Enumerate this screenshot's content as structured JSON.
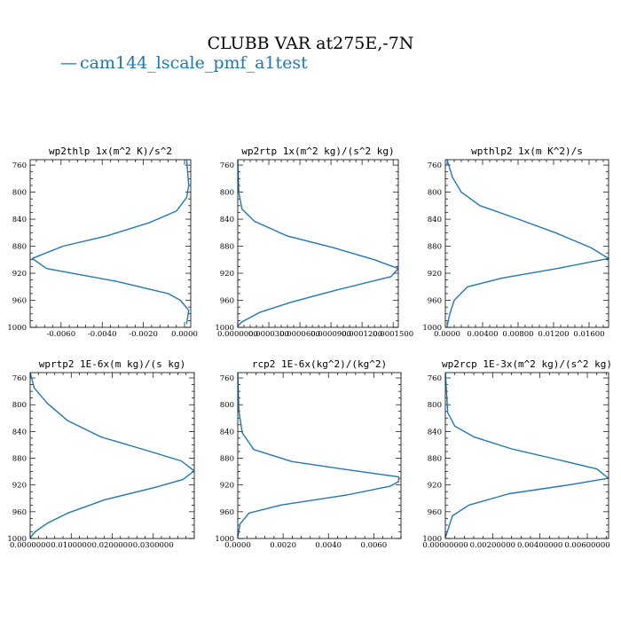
{
  "figure": {
    "title": "CLUBB VAR at275E,-7N",
    "legend": {
      "label": "cam144_lscale_pmf_a1test",
      "color": "#1f77b4",
      "marker": "—"
    }
  },
  "chart_data": [
    {
      "type": "line",
      "title": "wp2thlp  1x(m^2 K)/s^2",
      "y_ticks": [
        760,
        800,
        840,
        880,
        920,
        960,
        1000
      ],
      "x_ticks": [
        -0.006,
        -0.004,
        -0.002,
        0.0
      ],
      "x_tick_labels": [
        "-0.0060",
        "-0.0040",
        "-0.0020",
        "0.0000"
      ],
      "xlim": [
        -0.0075,
        0.0003
      ],
      "ylim": [
        1000,
        752
      ],
      "series": [
        {
          "x": [
            0.0001,
            0.0002,
            0.0001,
            -0.0004,
            -0.0017,
            -0.0038,
            -0.0059,
            -0.0074,
            -0.0067,
            -0.0033,
            -0.0008,
            -0.0002,
            0.0002,
            0.0001
          ],
          "y": [
            752,
            790,
            808,
            828,
            845,
            865,
            880,
            898,
            913,
            932,
            950,
            960,
            975,
            995
          ]
        }
      ]
    },
    {
      "type": "line",
      "title": "wp2rtp  1x(m^2 kg)/(s^2 kg)",
      "y_ticks": [
        760,
        800,
        840,
        880,
        920,
        960,
        1000
      ],
      "x_ticks": [
        0.0,
        3e-05,
        6e-05,
        9e-05,
        0.00012,
        0.00015
      ],
      "x_tick_labels": [
        "0.0000000",
        "0.0000300",
        "0.0000600",
        "0.0000900",
        "0.0001200",
        "0.0001500"
      ],
      "xlim": [
        0.0,
        0.000155
      ],
      "ylim": [
        1000,
        752
      ],
      "series": [
        {
          "x": [
            0.0,
            1e-06,
            4e-06,
            1.6e-05,
            4.8e-05,
            9.2e-05,
            0.000132,
            0.000155,
            0.000148,
            9.5e-05,
            5.1e-05,
            2.1e-05,
            4e-06,
            0.0
          ],
          "y": [
            752,
            800,
            825,
            843,
            865,
            882,
            900,
            913,
            925,
            945,
            963,
            978,
            992,
            998
          ]
        }
      ]
    },
    {
      "type": "line",
      "title": "wpthlp2  1x(m K^2)/s",
      "y_ticks": [
        760,
        800,
        840,
        880,
        920,
        960,
        1000
      ],
      "x_ticks": [
        0.0,
        0.004,
        0.008,
        0.012,
        0.016
      ],
      "x_tick_labels": [
        "0.0000",
        "0.00400",
        "0.00800",
        "0.01200",
        "0.01600"
      ],
      "xlim": [
        -0.0002,
        0.0182
      ],
      "ylim": [
        1000,
        752
      ],
      "series": [
        {
          "x": [
            0.0,
            0.0006,
            0.0016,
            0.0037,
            0.0076,
            0.0122,
            0.0162,
            0.0182,
            0.0124,
            0.0062,
            0.0023,
            0.0008,
            0.0003,
            0.0
          ],
          "y": [
            752,
            778,
            800,
            820,
            838,
            860,
            882,
            898,
            913,
            927,
            940,
            960,
            980,
            998
          ]
        }
      ]
    },
    {
      "type": "line",
      "title": "wprtp2  1E-6x(m kg)/(s kg)",
      "y_ticks": [
        760,
        800,
        840,
        880,
        920,
        960,
        1000
      ],
      "x_ticks": [
        0.0,
        0.01,
        0.02,
        0.03
      ],
      "x_tick_labels": [
        "0.0000000",
        "0.0100000",
        "0.0200000",
        "0.0300000"
      ],
      "xlim": [
        0.0,
        0.04
      ],
      "ylim": [
        1000,
        752
      ],
      "series": [
        {
          "x": [
            0.0,
            0.001,
            0.0042,
            0.0092,
            0.0172,
            0.0282,
            0.0368,
            0.04,
            0.0372,
            0.0302,
            0.0182,
            0.0092,
            0.0042,
            0.0012,
            0.0
          ],
          "y": [
            752,
            775,
            798,
            824,
            848,
            868,
            884,
            899,
            912,
            924,
            942,
            962,
            977,
            990,
            999
          ]
        }
      ]
    },
    {
      "type": "line",
      "title": "rcp2  1E-6x(kg^2)/(kg^2)",
      "y_ticks": [
        760,
        800,
        840,
        880,
        920,
        960,
        1000
      ],
      "x_ticks": [
        0.0,
        0.002,
        0.004,
        0.006
      ],
      "x_tick_labels": [
        "0.0000",
        "0.0020",
        "0.0040",
        "0.0060"
      ],
      "xlim": [
        0.0,
        0.0072
      ],
      "ylim": [
        1000,
        752
      ],
      "series": [
        {
          "x": [
            0.0,
            5e-05,
            0.0002,
            0.0007,
            0.0024,
            0.005,
            0.0071,
            0.0071,
            0.0067,
            0.0048,
            0.0019,
            0.0005,
            0.0001,
            0.0
          ],
          "y": [
            752,
            810,
            842,
            867,
            885,
            898,
            908,
            915,
            922,
            935,
            950,
            962,
            978,
            998
          ]
        }
      ]
    },
    {
      "type": "line",
      "title": "wp2rcp  1E-3x(m^2 kg)/(s^2 kg)",
      "y_ticks": [
        760,
        800,
        840,
        880,
        920,
        960,
        1000
      ],
      "x_ticks": [
        0.0,
        0.002,
        0.004,
        0.006
      ],
      "x_tick_labels": [
        "0.00000000",
        "0.00200000",
        "0.00400000",
        "0.00600000"
      ],
      "xlim": [
        0.0,
        0.0069
      ],
      "ylim": [
        1000,
        752
      ],
      "series": [
        {
          "x": [
            0.0,
            0.0001,
            0.0004,
            0.0012,
            0.0028,
            0.0045,
            0.0064,
            0.0069,
            0.0052,
            0.0027,
            0.001,
            0.0003,
            0.0
          ],
          "y": [
            752,
            812,
            832,
            848,
            866,
            880,
            896,
            910,
            920,
            933,
            950,
            966,
            999
          ]
        }
      ]
    }
  ]
}
